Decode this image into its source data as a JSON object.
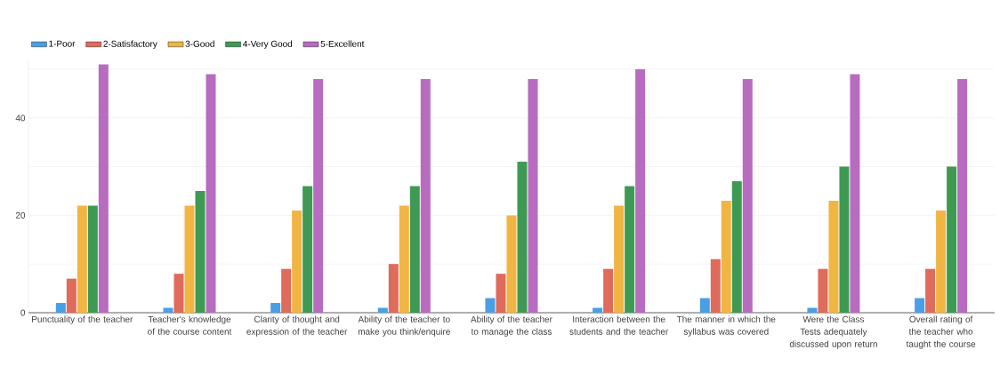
{
  "chart_data": {
    "type": "bar",
    "categories": [
      "Punctuality of the teacher",
      "Teacher's knowledge of the course content",
      "Clarity of thought and expression of the teacher",
      "Ability of the teacher to make you think/enquire",
      "Ability of the teacher to manage the class",
      "Interaction between the students and the teacher",
      "The manner in which the syllabus was covered",
      "Were the Class Tests adequately discussed upon return",
      "Overall rating of the teacher who taught the course"
    ],
    "series": [
      {
        "name": "1-Poor",
        "color": "#4a9fe4",
        "values": [
          2,
          1,
          2,
          1,
          3,
          1,
          3,
          1,
          3
        ]
      },
      {
        "name": "2-Satisfactory",
        "color": "#de6b5b",
        "values": [
          7,
          8,
          9,
          10,
          8,
          9,
          11,
          9,
          9
        ]
      },
      {
        "name": "3-Good",
        "color": "#f0b543",
        "values": [
          22,
          22,
          21,
          22,
          20,
          22,
          23,
          23,
          21
        ]
      },
      {
        "name": "4-Very Good",
        "color": "#3e9a52",
        "values": [
          22,
          25,
          26,
          26,
          31,
          26,
          27,
          30,
          30
        ]
      },
      {
        "name": "5-Excellent",
        "color": "#b76cc0",
        "values": [
          51,
          49,
          48,
          48,
          48,
          50,
          48,
          49,
          48
        ]
      }
    ],
    "ylim": [
      0,
      52
    ],
    "yticks": [
      0,
      {
        "value": 10,
        "label": null
      },
      20,
      {
        "value": 30,
        "label": null
      },
      40,
      {
        "value": 50,
        "label": null
      }
    ],
    "grid": "y",
    "legend": "top left"
  }
}
